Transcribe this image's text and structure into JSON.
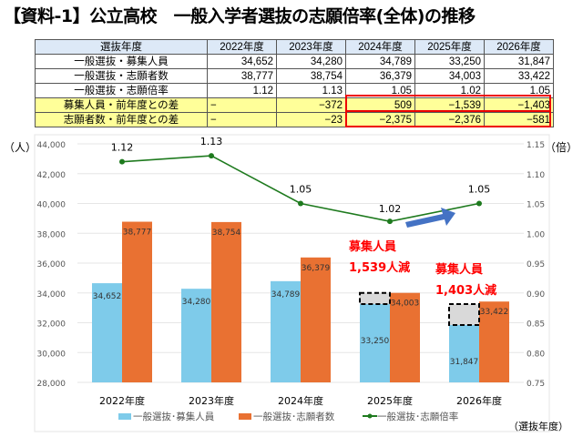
{
  "title": "【資料-1】公立高校　一般入学者選抜の志願倍率(全体)の推移",
  "table": {
    "header": [
      "選抜年度",
      "2022年度",
      "2023年度",
      "2024年度",
      "2025年度",
      "2026年度"
    ],
    "rows": [
      [
        "一般選抜・募集人員",
        "34,652",
        "34,280",
        "34,789",
        "33,250",
        "31,847"
      ],
      [
        "一般選抜・志願者数",
        "38,777",
        "38,754",
        "36,379",
        "34,003",
        "33,422"
      ],
      [
        "一般選抜・志願倍率",
        "1.12",
        "1.13",
        "1.05",
        "1.02",
        "1.05"
      ],
      [
        "募集人員・前年度との差",
        "−",
        "−372",
        "509",
        "−1,539",
        "−1,403"
      ],
      [
        "志願者数・前年度との差",
        "−",
        "−23",
        "−2,375",
        "−2,376",
        "−581"
      ]
    ]
  },
  "chart_data": {
    "type": "bar+line",
    "categories": [
      "2022年度",
      "2023年度",
      "2024年度",
      "2025年度",
      "2026年度"
    ],
    "series": [
      {
        "name": "一般選抜･募集人員",
        "type": "bar",
        "axis": "left",
        "color": "#7ecbea",
        "values": [
          34652,
          34280,
          34789,
          33250,
          31847
        ],
        "labels": [
          "34,652",
          "34,280",
          "34,789",
          "33,250",
          "31,847"
        ]
      },
      {
        "name": "一般選抜･志願者数",
        "type": "bar",
        "axis": "left",
        "color": "#e97132",
        "values": [
          38777,
          38754,
          36379,
          34003,
          33422
        ],
        "labels": [
          "38,777",
          "38,754",
          "36,379",
          "34,003",
          "33,422"
        ]
      },
      {
        "name": "一般選抜･志願倍率",
        "type": "line",
        "axis": "right",
        "color": "#1e7a1e",
        "values": [
          1.12,
          1.13,
          1.05,
          1.02,
          1.05
        ],
        "labels": [
          "1.12",
          "1.13",
          "1.05",
          "1.02",
          "1.05"
        ]
      }
    ],
    "ylim_left": [
      28000,
      44000
    ],
    "yticks_left": [
      "28,000",
      "30,000",
      "32,000",
      "34,000",
      "36,000",
      "38,000",
      "40,000",
      "42,000",
      "44,000"
    ],
    "ylim_right": [
      0.75,
      1.15
    ],
    "yticks_right": [
      "0.75",
      "0.80",
      "0.85",
      "0.90",
      "0.95",
      "1.00",
      "1.05",
      "1.10",
      "1.15"
    ],
    "ylabel_left": "（人）",
    "ylabel_right": "（倍）",
    "xlabel": "（選抜年度）",
    "legend": "bottom",
    "grid": true,
    "annotations": [
      {
        "line1": "募集人員",
        "line2": "1,539人減",
        "category": "2025年度"
      },
      {
        "line1": "募集人員",
        "line2": "1,403人減",
        "category": "2026年度"
      }
    ]
  }
}
